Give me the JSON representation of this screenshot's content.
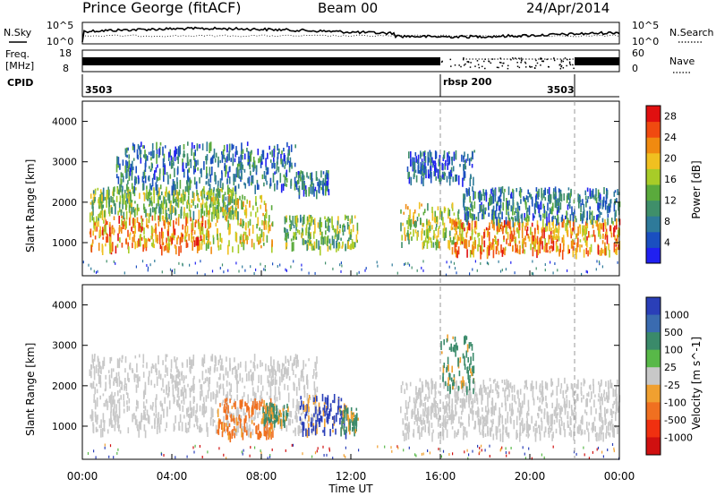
{
  "header": {
    "station": "Prince George (fitACF)",
    "beam": "Beam 00",
    "date": "24/Apr/2014"
  },
  "top_panels": {
    "nsky_label": "N.Sky",
    "nsearch_label": "N.Search",
    "noise_ticks_left": [
      "10^5",
      "10^0"
    ],
    "noise_ticks_right": [
      "10^5",
      "10^0"
    ],
    "freq_label_1": "Freq.",
    "freq_label_2": "[MHz]",
    "freq_ticks": [
      "18",
      "8"
    ],
    "nave_label": "Nave",
    "nave_ticks": [
      "60",
      "0"
    ],
    "cpid_label": "CPID",
    "cpid_segments": [
      {
        "label": "3503",
        "start_hour": 0
      },
      {
        "label": "rbsp 200",
        "start_hour": 16
      },
      {
        "label": "3503",
        "start_hour": 22
      }
    ]
  },
  "chart_data": [
    {
      "type": "heatmap",
      "panel": "power",
      "xlabel": "",
      "ylabel": "Slant Range [km]",
      "xlim": [
        0,
        24
      ],
      "ylim": [
        180,
        4500
      ],
      "yticks": [
        "1000",
        "2000",
        "3000",
        "4000"
      ],
      "colorbar": {
        "label": "Power [dB]",
        "range": [
          0,
          30
        ],
        "ticks": [
          "4",
          "8",
          "12",
          "16",
          "20",
          "24",
          "28"
        ],
        "colors": [
          "#2020f0",
          "#1a4fc0",
          "#2e7a9a",
          "#3f8f6a",
          "#5aaa3c",
          "#a8cc28",
          "#f0c020",
          "#f08a10",
          "#f04a10",
          "#e01010"
        ]
      },
      "echo_bands": [
        {
          "x": [
            0.3,
            5.5
          ],
          "range_km": [
            900,
            1700
          ],
          "power_db": 22
        },
        {
          "x": [
            0.3,
            7.0
          ],
          "range_km": [
            1700,
            2400
          ],
          "power_db": 14
        },
        {
          "x": [
            1.5,
            9.5
          ],
          "range_km": [
            2400,
            3500
          ],
          "power_db": 8
        },
        {
          "x": [
            5.5,
            8.5
          ],
          "range_km": [
            900,
            2200
          ],
          "power_db": 18
        },
        {
          "x": [
            9.5,
            11.0
          ],
          "range_km": [
            2300,
            2800
          ],
          "power_db": 8
        },
        {
          "x": [
            9.0,
            12.3
          ],
          "range_km": [
            900,
            1700
          ],
          "power_db": 14
        },
        {
          "x": [
            14.2,
            17.0
          ],
          "range_km": [
            1000,
            2000
          ],
          "power_db": 16
        },
        {
          "x": [
            16.5,
            24.0
          ],
          "range_km": [
            800,
            1600
          ],
          "power_db": 22
        },
        {
          "x": [
            17.0,
            24.0
          ],
          "range_km": [
            1600,
            2400
          ],
          "power_db": 8
        },
        {
          "x": [
            14.5,
            17.5
          ],
          "range_km": [
            2600,
            3300
          ],
          "power_db": 6
        }
      ]
    },
    {
      "type": "heatmap",
      "panel": "velocity",
      "xlabel": "Time UT",
      "ylabel": "Slant Range [km]",
      "xlim": [
        0,
        24
      ],
      "ylim": [
        180,
        4500
      ],
      "xticks": [
        "00:00",
        "04:00",
        "08:00",
        "12:00",
        "16:00",
        "20:00",
        "00:00"
      ],
      "yticks": [
        "1000",
        "2000",
        "3000",
        "4000"
      ],
      "colorbar": {
        "label": "Velocity [m s^-1]",
        "ticks": [
          "1000",
          "500",
          "100",
          "25",
          "-25",
          "-100",
          "-500",
          "-1000"
        ],
        "colors": [
          "#2a3fb8",
          "#3a6bb0",
          "#3a8a6a",
          "#58b848",
          "#c8c8c8",
          "#f0a030",
          "#f07020",
          "#f03010",
          "#d01010"
        ]
      },
      "echo_bands": [
        {
          "x": [
            0.3,
            10.5
          ],
          "range_km": [
            900,
            2800
          ],
          "velocity_class": "ground-scatter"
        },
        {
          "x": [
            6.0,
            8.5
          ],
          "range_km": [
            800,
            1700
          ],
          "velocity_class": "-500"
        },
        {
          "x": [
            8.0,
            9.2
          ],
          "range_km": [
            1100,
            1600
          ],
          "velocity_class": "100"
        },
        {
          "x": [
            9.7,
            11.8
          ],
          "range_km": [
            900,
            1800
          ],
          "velocity_class": "1000"
        },
        {
          "x": [
            11.5,
            12.3
          ],
          "range_km": [
            900,
            1500
          ],
          "velocity_class": "100"
        },
        {
          "x": [
            14.2,
            24.0
          ],
          "range_km": [
            800,
            2200
          ],
          "velocity_class": "ground-scatter"
        },
        {
          "x": [
            16.0,
            17.5
          ],
          "range_km": [
            1900,
            3300
          ],
          "velocity_class": "100"
        }
      ]
    }
  ]
}
